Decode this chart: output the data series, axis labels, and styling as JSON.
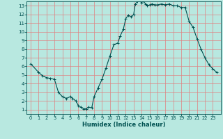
{
  "x": [
    0,
    1,
    1.5,
    2,
    2.5,
    3,
    3.5,
    4,
    4.5,
    5,
    5.3,
    5.7,
    6,
    6.3,
    6.7,
    7,
    7.3,
    7.7,
    8,
    8.5,
    9,
    9.5,
    10,
    10.5,
    11,
    11.3,
    11.7,
    12,
    12.3,
    12.7,
    13,
    13.2,
    13.5,
    13.7,
    14,
    14.2,
    14.5,
    14.7,
    15,
    15.3,
    15.7,
    16,
    16.5,
    17,
    17.5,
    18,
    18.5,
    19,
    19.5,
    20,
    20.5,
    21,
    21.5,
    22,
    22.5,
    23,
    23.5
  ],
  "y": [
    6.3,
    5.3,
    4.9,
    4.7,
    4.6,
    4.5,
    3.0,
    2.5,
    2.3,
    2.5,
    2.3,
    2.0,
    1.5,
    1.3,
    1.1,
    1.1,
    1.3,
    1.2,
    2.5,
    3.5,
    4.5,
    5.8,
    7.2,
    8.5,
    8.7,
    9.5,
    10.3,
    11.5,
    11.9,
    11.7,
    12.0,
    13.2,
    13.5,
    13.7,
    13.3,
    13.6,
    13.2,
    13.0,
    13.1,
    13.2,
    13.1,
    13.1,
    13.2,
    13.1,
    13.2,
    13.0,
    13.0,
    12.8,
    12.8,
    11.2,
    10.5,
    9.2,
    8.0,
    7.0,
    6.2,
    5.7,
    5.3
  ],
  "bg_color": "#b8e8e0",
  "grid_color": "#e08080",
  "line_color": "#005050",
  "xlabel": "Humidex (Indice chaleur)",
  "xlim": [
    -0.5,
    24
  ],
  "ylim": [
    0.5,
    13.5
  ],
  "xticks": [
    0,
    1,
    2,
    3,
    4,
    5,
    6,
    7,
    8,
    9,
    10,
    11,
    12,
    13,
    14,
    15,
    16,
    17,
    18,
    19,
    20,
    21,
    22,
    23
  ],
  "yticks": [
    1,
    2,
    3,
    4,
    5,
    6,
    7,
    8,
    9,
    10,
    11,
    12,
    13
  ]
}
